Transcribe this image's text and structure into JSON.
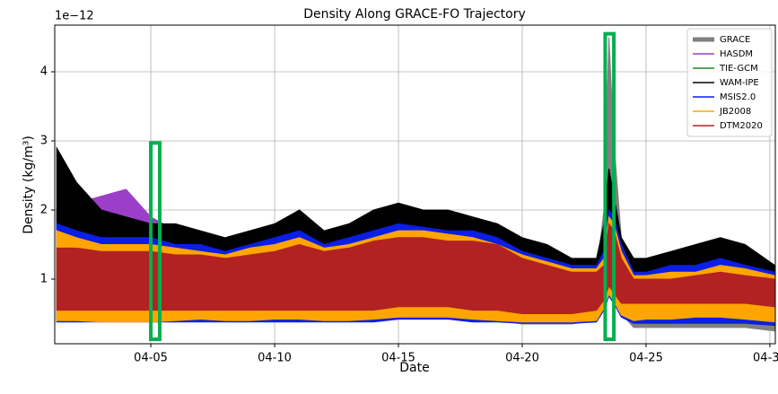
{
  "chart_data": {
    "type": "band",
    "title": "Density Along GRACE-FO Trajectory",
    "x_label": "Date",
    "y_label": "Density (kg/m³)",
    "y_offset_label": "1e−12",
    "x": [
      1.2,
      2,
      3,
      4,
      5,
      6,
      7,
      8,
      9,
      10,
      11,
      12,
      13,
      14,
      15,
      16,
      17,
      18,
      19,
      20,
      21,
      22,
      23,
      23.3,
      23.5,
      23.7,
      24,
      24.5,
      25,
      26,
      27,
      28,
      29,
      30.2
    ],
    "xlim": [
      1.12,
      30.22
    ],
    "xticks": [
      {
        "value": 5,
        "label": "04-05"
      },
      {
        "value": 10,
        "label": "04-10"
      },
      {
        "value": 15,
        "label": "04-15"
      },
      {
        "value": 20,
        "label": "04-20"
      },
      {
        "value": 25,
        "label": "04-25"
      },
      {
        "value": 30,
        "label": "04-30"
      }
    ],
    "ylim": [
      0.065,
      4.675
    ],
    "yticks": [
      1,
      2,
      3,
      4
    ],
    "grid": true,
    "legend": "upper right",
    "series": [
      {
        "name": "GRACE",
        "color": "#808080",
        "values": [
          1.2,
          1.2,
          1.2,
          1.2,
          1.2,
          1.2,
          1.2,
          1.1,
          1.1,
          1.2,
          1.3,
          1.2,
          1.2,
          1.3,
          1.4,
          1.3,
          1.3,
          1.2,
          1.2,
          1.1,
          1.0,
          1.0,
          1.1,
          2.0,
          4.5,
          3.0,
          1.6,
          1.3,
          1.1,
          1.0,
          1.0,
          1.0,
          1.0,
          0.9
        ],
        "low": [
          0.4,
          0.4,
          0.4,
          0.4,
          0.4,
          0.4,
          0.4,
          0.4,
          0.4,
          0.4,
          0.4,
          0.4,
          0.4,
          0.4,
          0.45,
          0.45,
          0.45,
          0.4,
          0.4,
          0.35,
          0.35,
          0.35,
          0.4,
          0.6,
          0.8,
          0.7,
          0.5,
          0.3,
          0.3,
          0.3,
          0.3,
          0.3,
          0.3,
          0.25
        ]
      },
      {
        "name": "HASDM",
        "color": "#9b3fc9",
        "values": [
          2.0,
          2.1,
          2.2,
          2.3,
          1.9,
          1.7,
          1.6,
          1.5,
          1.6,
          1.7,
          1.8,
          1.6,
          1.7,
          1.9,
          2.0,
          1.9,
          1.8,
          1.8,
          1.7,
          1.5,
          1.4,
          1.3,
          1.2,
          1.4,
          2.4,
          2.0,
          1.5,
          1.2,
          1.2,
          1.3,
          1.4,
          1.5,
          1.4,
          1.1
        ],
        "low": [
          0.45,
          0.45,
          0.45,
          0.45,
          0.45,
          0.45,
          0.45,
          0.45,
          0.45,
          0.45,
          0.45,
          0.45,
          0.45,
          0.45,
          0.5,
          0.5,
          0.5,
          0.45,
          0.45,
          0.4,
          0.4,
          0.4,
          0.45,
          0.6,
          0.8,
          0.7,
          0.5,
          0.4,
          0.4,
          0.4,
          0.4,
          0.4,
          0.4,
          0.35
        ]
      },
      {
        "name": "TIE-GCM",
        "color": "#1a8a1a",
        "values": [
          1.6,
          1.6,
          1.5,
          1.5,
          1.5,
          1.5,
          1.45,
          1.4,
          1.45,
          1.5,
          1.6,
          1.5,
          1.5,
          1.6,
          1.7,
          1.7,
          1.6,
          1.6,
          1.5,
          1.35,
          1.3,
          1.2,
          1.2,
          1.4,
          2.0,
          1.8,
          1.4,
          1.1,
          1.1,
          1.1,
          1.2,
          1.2,
          1.2,
          1.05
        ],
        "low": [
          0.4,
          0.4,
          0.4,
          0.4,
          0.4,
          0.4,
          0.4,
          0.4,
          0.4,
          0.4,
          0.4,
          0.4,
          0.4,
          0.4,
          0.45,
          0.45,
          0.45,
          0.4,
          0.4,
          0.38,
          0.38,
          0.38,
          0.4,
          0.6,
          0.8,
          0.7,
          0.5,
          0.38,
          0.38,
          0.38,
          0.38,
          0.38,
          0.38,
          0.35
        ]
      },
      {
        "name": "WAM-IPE",
        "color": "#000000",
        "values": [
          2.9,
          2.4,
          2.0,
          1.9,
          1.8,
          1.8,
          1.7,
          1.6,
          1.7,
          1.8,
          2.0,
          1.7,
          1.8,
          2.0,
          2.1,
          2.0,
          2.0,
          1.9,
          1.8,
          1.6,
          1.5,
          1.3,
          1.3,
          1.8,
          2.6,
          2.2,
          1.6,
          1.3,
          1.3,
          1.4,
          1.5,
          1.6,
          1.5,
          1.2
        ],
        "low": [
          0.5,
          0.5,
          0.5,
          0.5,
          0.5,
          0.5,
          0.5,
          0.5,
          0.5,
          0.5,
          0.5,
          0.5,
          0.5,
          0.5,
          0.55,
          0.55,
          0.55,
          0.5,
          0.5,
          0.45,
          0.45,
          0.45,
          0.5,
          0.7,
          0.9,
          0.8,
          0.6,
          0.45,
          0.45,
          0.45,
          0.45,
          0.45,
          0.45,
          0.4
        ]
      },
      {
        "name": "MSIS2.0",
        "color": "#0a1ee6",
        "values": [
          1.8,
          1.7,
          1.6,
          1.6,
          1.6,
          1.5,
          1.5,
          1.4,
          1.5,
          1.6,
          1.7,
          1.5,
          1.6,
          1.7,
          1.8,
          1.75,
          1.7,
          1.7,
          1.6,
          1.4,
          1.3,
          1.2,
          1.2,
          1.4,
          2.0,
          1.9,
          1.5,
          1.1,
          1.1,
          1.2,
          1.2,
          1.3,
          1.2,
          1.1
        ],
        "low": [
          0.38,
          0.38,
          0.38,
          0.38,
          0.38,
          0.38,
          0.38,
          0.38,
          0.38,
          0.38,
          0.38,
          0.38,
          0.38,
          0.38,
          0.42,
          0.42,
          0.42,
          0.38,
          0.38,
          0.36,
          0.36,
          0.36,
          0.38,
          0.55,
          0.75,
          0.65,
          0.45,
          0.36,
          0.36,
          0.36,
          0.36,
          0.36,
          0.36,
          0.33
        ]
      },
      {
        "name": "JB2008",
        "color": "#ffa500",
        "values": [
          1.7,
          1.6,
          1.5,
          1.5,
          1.5,
          1.45,
          1.4,
          1.35,
          1.45,
          1.5,
          1.6,
          1.45,
          1.5,
          1.6,
          1.7,
          1.7,
          1.65,
          1.6,
          1.5,
          1.35,
          1.25,
          1.15,
          1.15,
          1.3,
          1.9,
          1.8,
          1.4,
          1.05,
          1.05,
          1.1,
          1.1,
          1.2,
          1.15,
          1.05
        ],
        "low": [
          0.4,
          0.4,
          0.38,
          0.38,
          0.38,
          0.4,
          0.42,
          0.4,
          0.4,
          0.42,
          0.42,
          0.4,
          0.4,
          0.42,
          0.45,
          0.45,
          0.45,
          0.42,
          0.4,
          0.38,
          0.38,
          0.38,
          0.4,
          0.58,
          0.78,
          0.68,
          0.48,
          0.4,
          0.42,
          0.42,
          0.45,
          0.45,
          0.42,
          0.38
        ]
      },
      {
        "name": "DTM2020",
        "color": "#b22222",
        "values": [
          1.45,
          1.45,
          1.4,
          1.4,
          1.4,
          1.35,
          1.35,
          1.3,
          1.35,
          1.4,
          1.5,
          1.4,
          1.45,
          1.55,
          1.6,
          1.6,
          1.55,
          1.55,
          1.5,
          1.3,
          1.2,
          1.1,
          1.1,
          1.2,
          1.8,
          1.7,
          1.3,
          1.0,
          1.0,
          1.0,
          1.05,
          1.1,
          1.05,
          1.0
        ],
        "low": [
          0.55,
          0.55,
          0.55,
          0.55,
          0.55,
          0.55,
          0.55,
          0.55,
          0.55,
          0.55,
          0.55,
          0.55,
          0.55,
          0.55,
          0.6,
          0.6,
          0.6,
          0.55,
          0.55,
          0.5,
          0.5,
          0.5,
          0.55,
          0.7,
          0.9,
          0.8,
          0.65,
          0.65,
          0.65,
          0.65,
          0.65,
          0.65,
          0.65,
          0.6
        ]
      }
    ],
    "highlights": [
      {
        "x0": 5.0,
        "x1": 5.36,
        "y0": 0.13,
        "y1": 2.97,
        "color": "#00b050"
      },
      {
        "x0": 23.35,
        "x1": 23.7,
        "y0": 0.13,
        "y1": 4.55,
        "color": "#00b050"
      }
    ]
  }
}
